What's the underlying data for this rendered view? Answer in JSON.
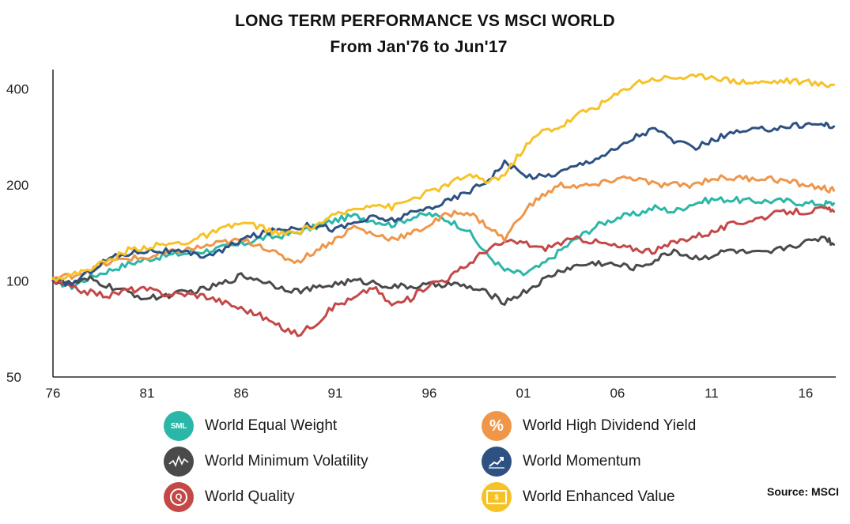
{
  "chart_data": {
    "type": "line",
    "title": "LONG TERM PERFORMANCE VS MSCI WORLD",
    "subtitle": "From Jan'76 to Jun'17",
    "y_scale": "log",
    "ylim": [
      50,
      460
    ],
    "y_ticks": [
      50,
      100,
      200,
      400
    ],
    "y_tick_labels": [
      "50",
      "100",
      "200",
      "400"
    ],
    "xlim": [
      1976,
      2017.6
    ],
    "x_ticks": [
      1976,
      1981,
      1986,
      1991,
      1996,
      2001,
      2006,
      2011,
      2016
    ],
    "x_tick_labels": [
      "76",
      "81",
      "86",
      "91",
      "96",
      "01",
      "06",
      "11",
      "16"
    ],
    "x": [
      1976,
      1977,
      1978,
      1979,
      1980,
      1981,
      1982,
      1983,
      1984,
      1985,
      1986,
      1987,
      1988,
      1989,
      1990,
      1991,
      1992,
      1993,
      1994,
      1995,
      1996,
      1997,
      1998,
      1999,
      2000,
      2001,
      2002,
      2003,
      2004,
      2005,
      2006,
      2007,
      2008,
      2009,
      2010,
      2011,
      2012,
      2013,
      2014,
      2015,
      2016,
      2017,
      2017.5
    ],
    "series": [
      {
        "name": "World Equal Weight",
        "color": "#2bb7a8",
        "values": [
          100,
          96,
          103,
          108,
          113,
          117,
          120,
          122,
          124,
          127,
          130,
          136,
          138,
          142,
          148,
          155,
          160,
          155,
          150,
          158,
          162,
          155,
          145,
          122,
          108,
          105,
          112,
          125,
          138,
          150,
          158,
          162,
          170,
          165,
          175,
          180,
          180,
          178,
          178,
          178,
          175,
          175,
          175
        ]
      },
      {
        "name": "World Minimum Volatility",
        "color": "#4a4a4a",
        "values": [
          100,
          98,
          101,
          96,
          92,
          88,
          90,
          92,
          94,
          98,
          104,
          101,
          96,
          93,
          95,
          98,
          100,
          99,
          96,
          96,
          97,
          98,
          96,
          92,
          86,
          92,
          100,
          108,
          112,
          114,
          112,
          110,
          116,
          125,
          118,
          120,
          125,
          122,
          122,
          128,
          132,
          138,
          130
        ]
      },
      {
        "name": "World Quality",
        "color": "#c44848",
        "values": [
          100,
          95,
          92,
          90,
          94,
          94,
          91,
          91,
          90,
          86,
          82,
          78,
          72,
          68,
          74,
          84,
          88,
          96,
          84,
          88,
          98,
          102,
          112,
          125,
          132,
          132,
          126,
          132,
          136,
          132,
          128,
          126,
          124,
          132,
          138,
          142,
          150,
          155,
          160,
          165,
          165,
          168,
          165
        ]
      },
      {
        "name": "World High Dividend Yield",
        "color": "#ef9649",
        "values": [
          102,
          104,
          108,
          114,
          118,
          118,
          122,
          125,
          128,
          132,
          134,
          130,
          120,
          115,
          125,
          135,
          148,
          140,
          136,
          140,
          150,
          162,
          165,
          150,
          135,
          165,
          185,
          200,
          198,
          200,
          210,
          210,
          200,
          200,
          200,
          210,
          210,
          210,
          210,
          205,
          200,
          195,
          192
        ]
      },
      {
        "name": "World Momentum",
        "color": "#2d5181",
        "values": [
          100,
          98,
          108,
          118,
          122,
          125,
          124,
          122,
          120,
          124,
          135,
          140,
          145,
          148,
          150,
          145,
          152,
          158,
          155,
          162,
          170,
          178,
          190,
          205,
          235,
          215,
          212,
          220,
          232,
          245,
          260,
          285,
          300,
          275,
          260,
          275,
          290,
          295,
          300,
          305,
          310,
          310,
          305
        ]
      },
      {
        "name": "World Enhanced Value",
        "color": "#f6c226",
        "values": [
          102,
          104,
          110,
          116,
          125,
          128,
          130,
          132,
          138,
          145,
          152,
          148,
          140,
          142,
          150,
          160,
          168,
          175,
          170,
          180,
          190,
          200,
          215,
          205,
          215,
          260,
          295,
          305,
          335,
          355,
          385,
          420,
          430,
          435,
          435,
          440,
          425,
          420,
          420,
          425,
          420,
          412,
          412
        ]
      }
    ]
  },
  "legend": [
    {
      "label": "World Equal Weight",
      "color": "#2bb7a8",
      "icon": "sml-icon",
      "glyph": "SML"
    },
    {
      "label": "World High Dividend Yield",
      "color": "#ef9649",
      "icon": "percent-icon",
      "glyph": "%"
    },
    {
      "label": "World Minimum Volatility",
      "color": "#4a4a4a",
      "icon": "volatility-zigzag-icon",
      "glyph": ""
    },
    {
      "label": "World Momentum",
      "color": "#2d5181",
      "icon": "rising-chart-icon",
      "glyph": ""
    },
    {
      "label": "World Quality",
      "color": "#c44848",
      "icon": "quality-seal-icon",
      "glyph": "Q"
    },
    {
      "label": "World Enhanced Value",
      "color": "#f6c226",
      "icon": "banknote-icon",
      "glyph": "$"
    }
  ],
  "source": "Source: MSCI"
}
